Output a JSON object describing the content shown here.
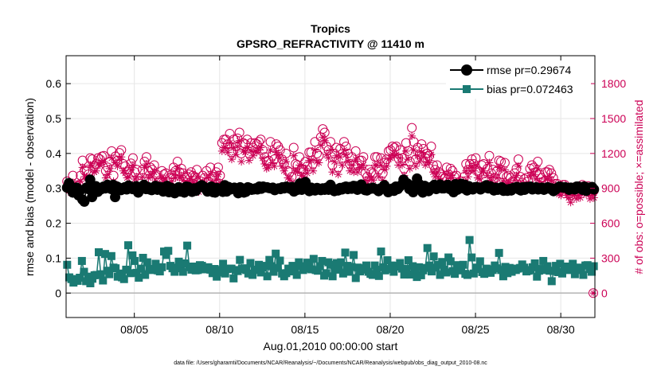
{
  "chart_data": {
    "type": "line",
    "title": "Tropics",
    "subtitle": "GPSRO_REFRACTIVITY @ 11410 m",
    "xlabel": "Aug.01,2010 00:00:00 start",
    "ylabel": "rmse and bias (model - observation)",
    "y2label": "# of obs: o=possible; ×=assimilated",
    "footnote": "data file: /Users/gharamti/Documents/NCAR/Reanalysis/~/Documents/NCAR/Reanalysis/webpub/obs_diag_output_2010-08.nc",
    "xlim": [
      1,
      32
    ],
    "ylim": [
      -0.07,
      0.68
    ],
    "y2lim": [
      -210,
      2040
    ],
    "xticks": [
      5,
      10,
      15,
      20,
      25,
      30
    ],
    "xtick_labels": [
      "08/05",
      "08/10",
      "08/15",
      "08/20",
      "08/25",
      "08/30"
    ],
    "yticks": [
      0,
      0.1,
      0.2,
      0.3,
      0.4,
      0.5,
      0.6
    ],
    "ytick_labels": [
      "0",
      "0.1",
      "0.2",
      "0.3",
      "0.4",
      "0.5",
      "0.6"
    ],
    "y2ticks": [
      0,
      300,
      600,
      900,
      1200,
      1500,
      1800
    ],
    "y2tick_labels": [
      "0",
      "300",
      "600",
      "900",
      "1200",
      "1500",
      "1800"
    ],
    "grid": true,
    "legend_position": "top-right",
    "colors": {
      "rmse": "#000000",
      "bias": "#1a7a73",
      "obs": "#cc0055",
      "grid": "#e6e6e6",
      "zero_line": "#b3b3b3"
    },
    "obs_possible_last": 0,
    "obs_assimilated_last": 0,
    "series": [
      {
        "name": "rmse pr=0.29674",
        "marker": "circle",
        "values": [
          0.302,
          0.315,
          0.305,
          0.288,
          0.296,
          0.302,
          0.28,
          0.295,
          0.268,
          0.262,
          0.302,
          0.298,
          0.325,
          0.275,
          0.287,
          0.306,
          0.29,
          0.3,
          0.298,
          0.305,
          0.3,
          0.31,
          0.305,
          0.298,
          0.31,
          0.275,
          0.305,
          0.302,
          0.295,
          0.298,
          0.303,
          0.297,
          0.308,
          0.305,
          0.298,
          0.304,
          0.306,
          0.288,
          0.298,
          0.3,
          0.31,
          0.298,
          0.304,
          0.297,
          0.295,
          0.303,
          0.307,
          0.296,
          0.304,
          0.303,
          0.291,
          0.299,
          0.307,
          0.289,
          0.302,
          0.297,
          0.286,
          0.299,
          0.303,
          0.291,
          0.3,
          0.288,
          0.305,
          0.304,
          0.299,
          0.29,
          0.3,
          0.293,
          0.302,
          0.305,
          0.309,
          0.305,
          0.299,
          0.291,
          0.296,
          0.305,
          0.289,
          0.288,
          0.301,
          0.296,
          0.299,
          0.29,
          0.309,
          0.291,
          0.304,
          0.297,
          0.299,
          0.302,
          0.3,
          0.286,
          0.303,
          0.3,
          0.288,
          0.29,
          0.303,
          0.301,
          0.296,
          0.297,
          0.3,
          0.297,
          0.305,
          0.299,
          0.305,
          0.303,
          0.303,
          0.301,
          0.3,
          0.302,
          0.295,
          0.298,
          0.3,
          0.298,
          0.303,
          0.3,
          0.305,
          0.302,
          0.299,
          0.304,
          0.291,
          0.299,
          0.296,
          0.314,
          0.296,
          0.306,
          0.318,
          0.3,
          0.292,
          0.302,
          0.295,
          0.294,
          0.301,
          0.299,
          0.295,
          0.3,
          0.296,
          0.302,
          0.296,
          0.31,
          0.3,
          0.292,
          0.297,
          0.294,
          0.301,
          0.297,
          0.303,
          0.305,
          0.298,
          0.304,
          0.299,
          0.307,
          0.306,
          0.296,
          0.306,
          0.311,
          0.298,
          0.295,
          0.294,
          0.3,
          0.299,
          0.302,
          0.299,
          0.297,
          0.292,
          0.3,
          0.299,
          0.309,
          0.301,
          0.289,
          0.297,
          0.299,
          0.293,
          0.305,
          0.298,
          0.305,
          0.31,
          0.325,
          0.312,
          0.314,
          0.298,
          0.302,
          0.289,
          0.311,
          0.328,
          0.313,
          0.298,
          0.288,
          0.307,
          0.295,
          0.292,
          0.303,
          0.305,
          0.31,
          0.298,
          0.304,
          0.311,
          0.3,
          0.3,
          0.305,
          0.31,
          0.298,
          0.302,
          0.289,
          0.312,
          0.296,
          0.306,
          0.313,
          0.3,
          0.31,
          0.294,
          0.306,
          0.3,
          0.297,
          0.303,
          0.304,
          0.302,
          0.297,
          0.303,
          0.302,
          0.309,
          0.3,
          0.306,
          0.301,
          0.294,
          0.302,
          0.296,
          0.298,
          0.303,
          0.293,
          0.297,
          0.293,
          0.298,
          0.294,
          0.301,
          0.302,
          0.304,
          0.297,
          0.294,
          0.303,
          0.296,
          0.304,
          0.302,
          0.305,
          0.297,
          0.301,
          0.303,
          0.297,
          0.3,
          0.302,
          0.296,
          0.299,
          0.303,
          0.299,
          0.3,
          0.292,
          0.296,
          0.301,
          0.305,
          0.304,
          0.302,
          0.303,
          0.302,
          0.296,
          0.302,
          0.299,
          0.297,
          0.305,
          0.305,
          0.3,
          0.296,
          0.305,
          0.293,
          0.302,
          0.3,
          0.304,
          0.297
        ]
      },
      {
        "name": "bias pr=0.072463",
        "marker": "square",
        "values": [
          0.081,
          0.045,
          0.04,
          0.03,
          0.04,
          0.035,
          0.044,
          0.092,
          0.061,
          0.034,
          0.047,
          0.028,
          0.041,
          0.051,
          0.052,
          0.117,
          0.054,
          0.036,
          0.112,
          0.064,
          0.054,
          0.106,
          0.073,
          0.071,
          0.047,
          0.056,
          0.045,
          0.04,
          0.067,
          0.137,
          0.057,
          0.108,
          0.092,
          0.058,
          0.044,
          0.07,
          0.101,
          0.052,
          0.088,
          0.069,
          0.066,
          0.067,
          0.084,
          0.065,
          0.062,
          0.074,
          0.119,
          0.109,
          0.121,
          0.078,
          0.071,
          0.061,
          0.073,
          0.09,
          0.071,
          0.061,
          0.085,
          0.136,
          0.074,
          0.067,
          0.076,
          0.065,
          0.066,
          0.08,
          0.078,
          0.068,
          0.069,
          0.074,
          0.067,
          0.057,
          0.069,
          0.047,
          0.059,
          0.066,
          0.084,
          0.056,
          0.069,
          0.07,
          0.07,
          0.042,
          0.066,
          0.063,
          0.095,
          0.069,
          0.071,
          0.066,
          0.056,
          0.086,
          0.052,
          0.066,
          0.067,
          0.081,
          0.059,
          0.073,
          0.078,
          0.048,
          0.095,
          0.077,
          0.061,
          0.113,
          0.072,
          0.093,
          0.056,
          0.048,
          0.057,
          0.07,
          0.062,
          0.078,
          0.072,
          0.052,
          0.088,
          0.077,
          0.066,
          0.07,
          0.087,
          0.079,
          0.068,
          0.098,
          0.066,
          0.064,
          0.077,
          0.092,
          0.05,
          0.057,
          0.088,
          0.081,
          0.048,
          0.069,
          0.086,
          0.067,
          0.088,
          0.056,
          0.116,
          0.078,
          0.061,
          0.075,
          0.109,
          0.043,
          0.073,
          0.062,
          0.067,
          0.071,
          0.079,
          0.061,
          0.055,
          0.052,
          0.079,
          0.067,
          0.049,
          0.119,
          0.074,
          0.065,
          0.094,
          0.069,
          0.079,
          0.061,
          0.076,
          0.078,
          0.086,
          0.07,
          0.053,
          0.069,
          0.094,
          0.053,
          0.077,
          0.065,
          0.046,
          0.074,
          0.051,
          0.065,
          0.072,
          0.129,
          0.079,
          0.062,
          0.105,
          0.073,
          0.081,
          0.052,
          0.089,
          0.067,
          0.059,
          0.102,
          0.091,
          0.063,
          0.055,
          0.08,
          0.075,
          0.065,
          0.081,
          0.055,
          0.052,
          0.152,
          0.102,
          0.056,
          0.073,
          0.069,
          0.091,
          0.06,
          0.055,
          0.07,
          0.068,
          0.058,
          0.066,
          0.079,
          0.071,
          0.115,
          0.066,
          0.048,
          0.075,
          0.057,
          0.072,
          0.061,
          0.07,
          0.066,
          0.07,
          0.072,
          0.082,
          0.073,
          0.062,
          0.064,
          0.066,
          0.074,
          0.085,
          0.047,
          0.064,
          0.069,
          0.092,
          0.066,
          0.077,
          0.064,
          0.034,
          0.063,
          0.078,
          0.06,
          0.084,
          0.056,
          0.069,
          0.076,
          0.066,
          0.072,
          0.084,
          0.054,
          0.069,
          0.073,
          0.066,
          0.052,
          0.079,
          0.08,
          0.069,
          0.061,
          0.077
        ]
      }
    ],
    "obs_counts": {
      "possible": [
        960,
        930,
        920,
        1010,
        905,
        920,
        930,
        1010,
        1140,
        1055,
        1050,
        1020,
        1160,
        1150,
        1090,
        1110,
        1160,
        1150,
        1175,
        1180,
        1050,
        1080,
        1130,
        1220,
        1010,
        1175,
        1140,
        1205,
        1230,
        1110,
        1090,
        1040,
        1060,
        1115,
        1160,
        1040,
        1060,
        960,
        940,
        1060,
        1130,
        1170,
        1050,
        1080,
        1060,
        1100,
        1020,
        950,
        970,
        1050,
        1020,
        1030,
        960,
        990,
        1020,
        1080,
        1050,
        1130,
        1040,
        1070,
        1030,
        990,
        1000,
        1020,
        1040,
        1010,
        1000,
        1060,
        920,
        960,
        1010,
        990,
        1050,
        960,
        1080,
        1000,
        1000,
        1040,
        1080,
        1010,
        1290,
        1320,
        1320,
        1280,
        1370,
        1210,
        1320,
        1260,
        1330,
        1380,
        1200,
        1290,
        1280,
        1320,
        1200,
        1290,
        1250,
        1290,
        1280,
        1300,
        1320,
        1230,
        1170,
        1130,
        1140,
        1300,
        1180,
        1150,
        1280,
        1260,
        1230,
        1150,
        1110,
        1200,
        1050,
        1040,
        1000,
        1250,
        1110,
        1100,
        1170,
        1070,
        1060,
        1130,
        1090,
        1210,
        1210,
        1110,
        1300,
        1200,
        1180,
        1340,
        1410,
        1380,
        1260,
        1230,
        1300,
        1100,
        1200,
        1250,
        1080,
        1240,
        1160,
        1300,
        1260,
        1200,
        1110,
        1170,
        1100,
        1220,
        1100,
        1140,
        1140,
        1170,
        1030,
        1000,
        1060,
        1040,
        1030,
        1170,
        1170,
        1060,
        1160,
        1030,
        1120,
        1150,
        1220,
        1230,
        1260,
        1250,
        1260,
        1160,
        1230,
        1160,
        1070,
        1290,
        1220,
        1130,
        1420,
        1300,
        1150,
        1250,
        1190,
        1280,
        1240,
        1160,
        1200,
        1180,
        1260,
        1100,
        1060,
        1100,
        1040,
        1020,
        1000,
        990,
        1080,
        1020,
        1070,
        1050,
        1000,
        1010,
        950,
        960,
        960,
        1000,
        1110,
        1060,
        1110,
        1150,
        1110,
        1160,
        1050,
        1040,
        1100,
        1110,
        960,
        1070,
        1180,
        1030,
        1060,
        990,
        1050,
        1140,
        1130,
        1020,
        1120,
        1000,
        1010,
        990,
        960,
        1030,
        1070,
        1150,
        1000,
        950,
        980,
        990,
        960,
        1070,
        1100,
        1080,
        1040,
        1130,
        1020,
        990,
        960,
        1040,
        1040,
        1060,
        1030,
        990,
        940,
        940,
        910,
        900,
        930,
        930,
        900,
        880,
        840,
        900,
        910,
        870,
        900,
        880,
        930,
        920,
        910,
        920,
        870,
        900,
        880
      ],
      "assimilated": [
        900,
        880,
        860,
        950,
        850,
        870,
        880,
        960,
        1080,
        1000,
        1000,
        970,
        1100,
        1090,
        1040,
        1050,
        1110,
        1100,
        1120,
        1130,
        990,
        1020,
        1070,
        1160,
        960,
        1120,
        1090,
        1150,
        1170,
        1050,
        1030,
        990,
        1000,
        1060,
        1100,
        980,
        1000,
        900,
        890,
        1000,
        1080,
        1110,
        990,
        1020,
        1000,
        1040,
        960,
        900,
        920,
        990,
        960,
        980,
        900,
        940,
        960,
        1020,
        990,
        1070,
        990,
        1010,
        970,
        940,
        940,
        960,
        980,
        950,
        940,
        1000,
        870,
        900,
        950,
        930,
        990,
        900,
        1020,
        950,
        940,
        980,
        1020,
        950,
        1220,
        1250,
        1250,
        1210,
        1290,
        1150,
        1250,
        1190,
        1260,
        1310,
        1130,
        1220,
        1210,
        1250,
        1140,
        1220,
        1180,
        1220,
        1210,
        1230,
        1250,
        1160,
        1110,
        1070,
        1080,
        1230,
        1120,
        1090,
        1210,
        1190,
        1160,
        1090,
        1050,
        1130,
        990,
        980,
        940,
        1180,
        1050,
        1040,
        1100,
        1010,
        1000,
        1070,
        1030,
        1140,
        1140,
        1050,
        1230,
        1130,
        1120,
        1270,
        1340,
        1310,
        1190,
        1160,
        1230,
        1040,
        1130,
        1180,
        1020,
        1170,
        1100,
        1230,
        1190,
        1130,
        1050,
        1100,
        1040,
        1150,
        1040,
        1080,
        1080,
        1100,
        970,
        940,
        1000,
        980,
        970,
        1100,
        1100,
        1000,
        1100,
        970,
        1060,
        1090,
        1150,
        1160,
        1190,
        1180,
        1190,
        1100,
        1160,
        1100,
        1010,
        1220,
        1150,
        1070,
        1350,
        1230,
        1090,
        1180,
        1130,
        1210,
        1170,
        1100,
        1130,
        1120,
        1190,
        1040,
        1000,
        1040,
        980,
        960,
        940,
        930,
        1020,
        960,
        1010,
        990,
        940,
        950,
        890,
        900,
        900,
        940,
        1050,
        1000,
        1050,
        1090,
        1050,
        1100,
        990,
        980,
        1040,
        1050,
        900,
        1010,
        1120,
        970,
        1000,
        930,
        990,
        1080,
        1070,
        960,
        1060,
        940,
        950,
        930,
        900,
        970,
        1010,
        1090,
        940,
        890,
        920,
        930,
        900,
        1010,
        1040,
        1020,
        980,
        1070,
        960,
        930,
        900,
        980,
        980,
        1000,
        970,
        930,
        880,
        880,
        850,
        840,
        870,
        870,
        840,
        820,
        780,
        840,
        850,
        810,
        840,
        820,
        870,
        860,
        850,
        860,
        810,
        840,
        820
      ]
    }
  }
}
